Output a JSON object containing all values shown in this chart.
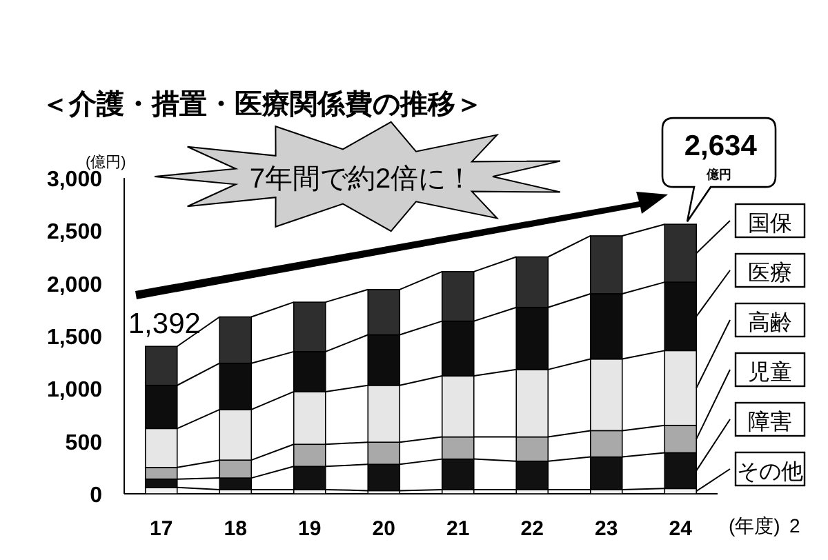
{
  "chart_data": {
    "type": "bar",
    "stacked": true,
    "title": "＜介護・措置・医療関係費の推移＞",
    "ylabel": "(億円)",
    "xlabel": "(年度)",
    "categories": [
      "17",
      "18",
      "19",
      "20",
      "21",
      "22",
      "23",
      "24"
    ],
    "series": [
      {
        "name": "その他",
        "color": "#f2f2f2",
        "values": [
          60,
          40,
          40,
          30,
          40,
          40,
          40,
          50
        ]
      },
      {
        "name": "障害",
        "color": "#111111",
        "values": [
          80,
          110,
          220,
          250,
          290,
          270,
          310,
          340
        ]
      },
      {
        "name": "児童",
        "color": "#a9a9a9",
        "values": [
          110,
          170,
          210,
          210,
          210,
          230,
          250,
          260
        ]
      },
      {
        "name": "高齢",
        "color": "#e6e6e6",
        "values": [
          370,
          480,
          500,
          540,
          580,
          640,
          680,
          710
        ]
      },
      {
        "name": "医療",
        "color": "#0d0d0d",
        "values": [
          410,
          440,
          380,
          480,
          520,
          590,
          620,
          650
        ]
      },
      {
        "name": "国保",
        "color": "#2e2e2e",
        "values": [
          370,
          440,
          470,
          430,
          470,
          480,
          550,
          550
        ]
      }
    ],
    "ylim": [
      0,
      3000
    ],
    "yticks": [
      0,
      500,
      {
        "value": 1000,
        "label": "1,000"
      },
      {
        "value": 1500,
        "label": "1,500"
      },
      {
        "value": 2000,
        "label": "2,000"
      },
      {
        "value": 2500,
        "label": "2,500"
      },
      {
        "value": 3000,
        "label": "3,000"
      }
    ],
    "legend": "right",
    "annotations": [
      {
        "text": "1,392",
        "x": "17",
        "y": 1392
      },
      "2,634",
      "億円",
      "7年間で約2倍に！",
      "2"
    ]
  }
}
